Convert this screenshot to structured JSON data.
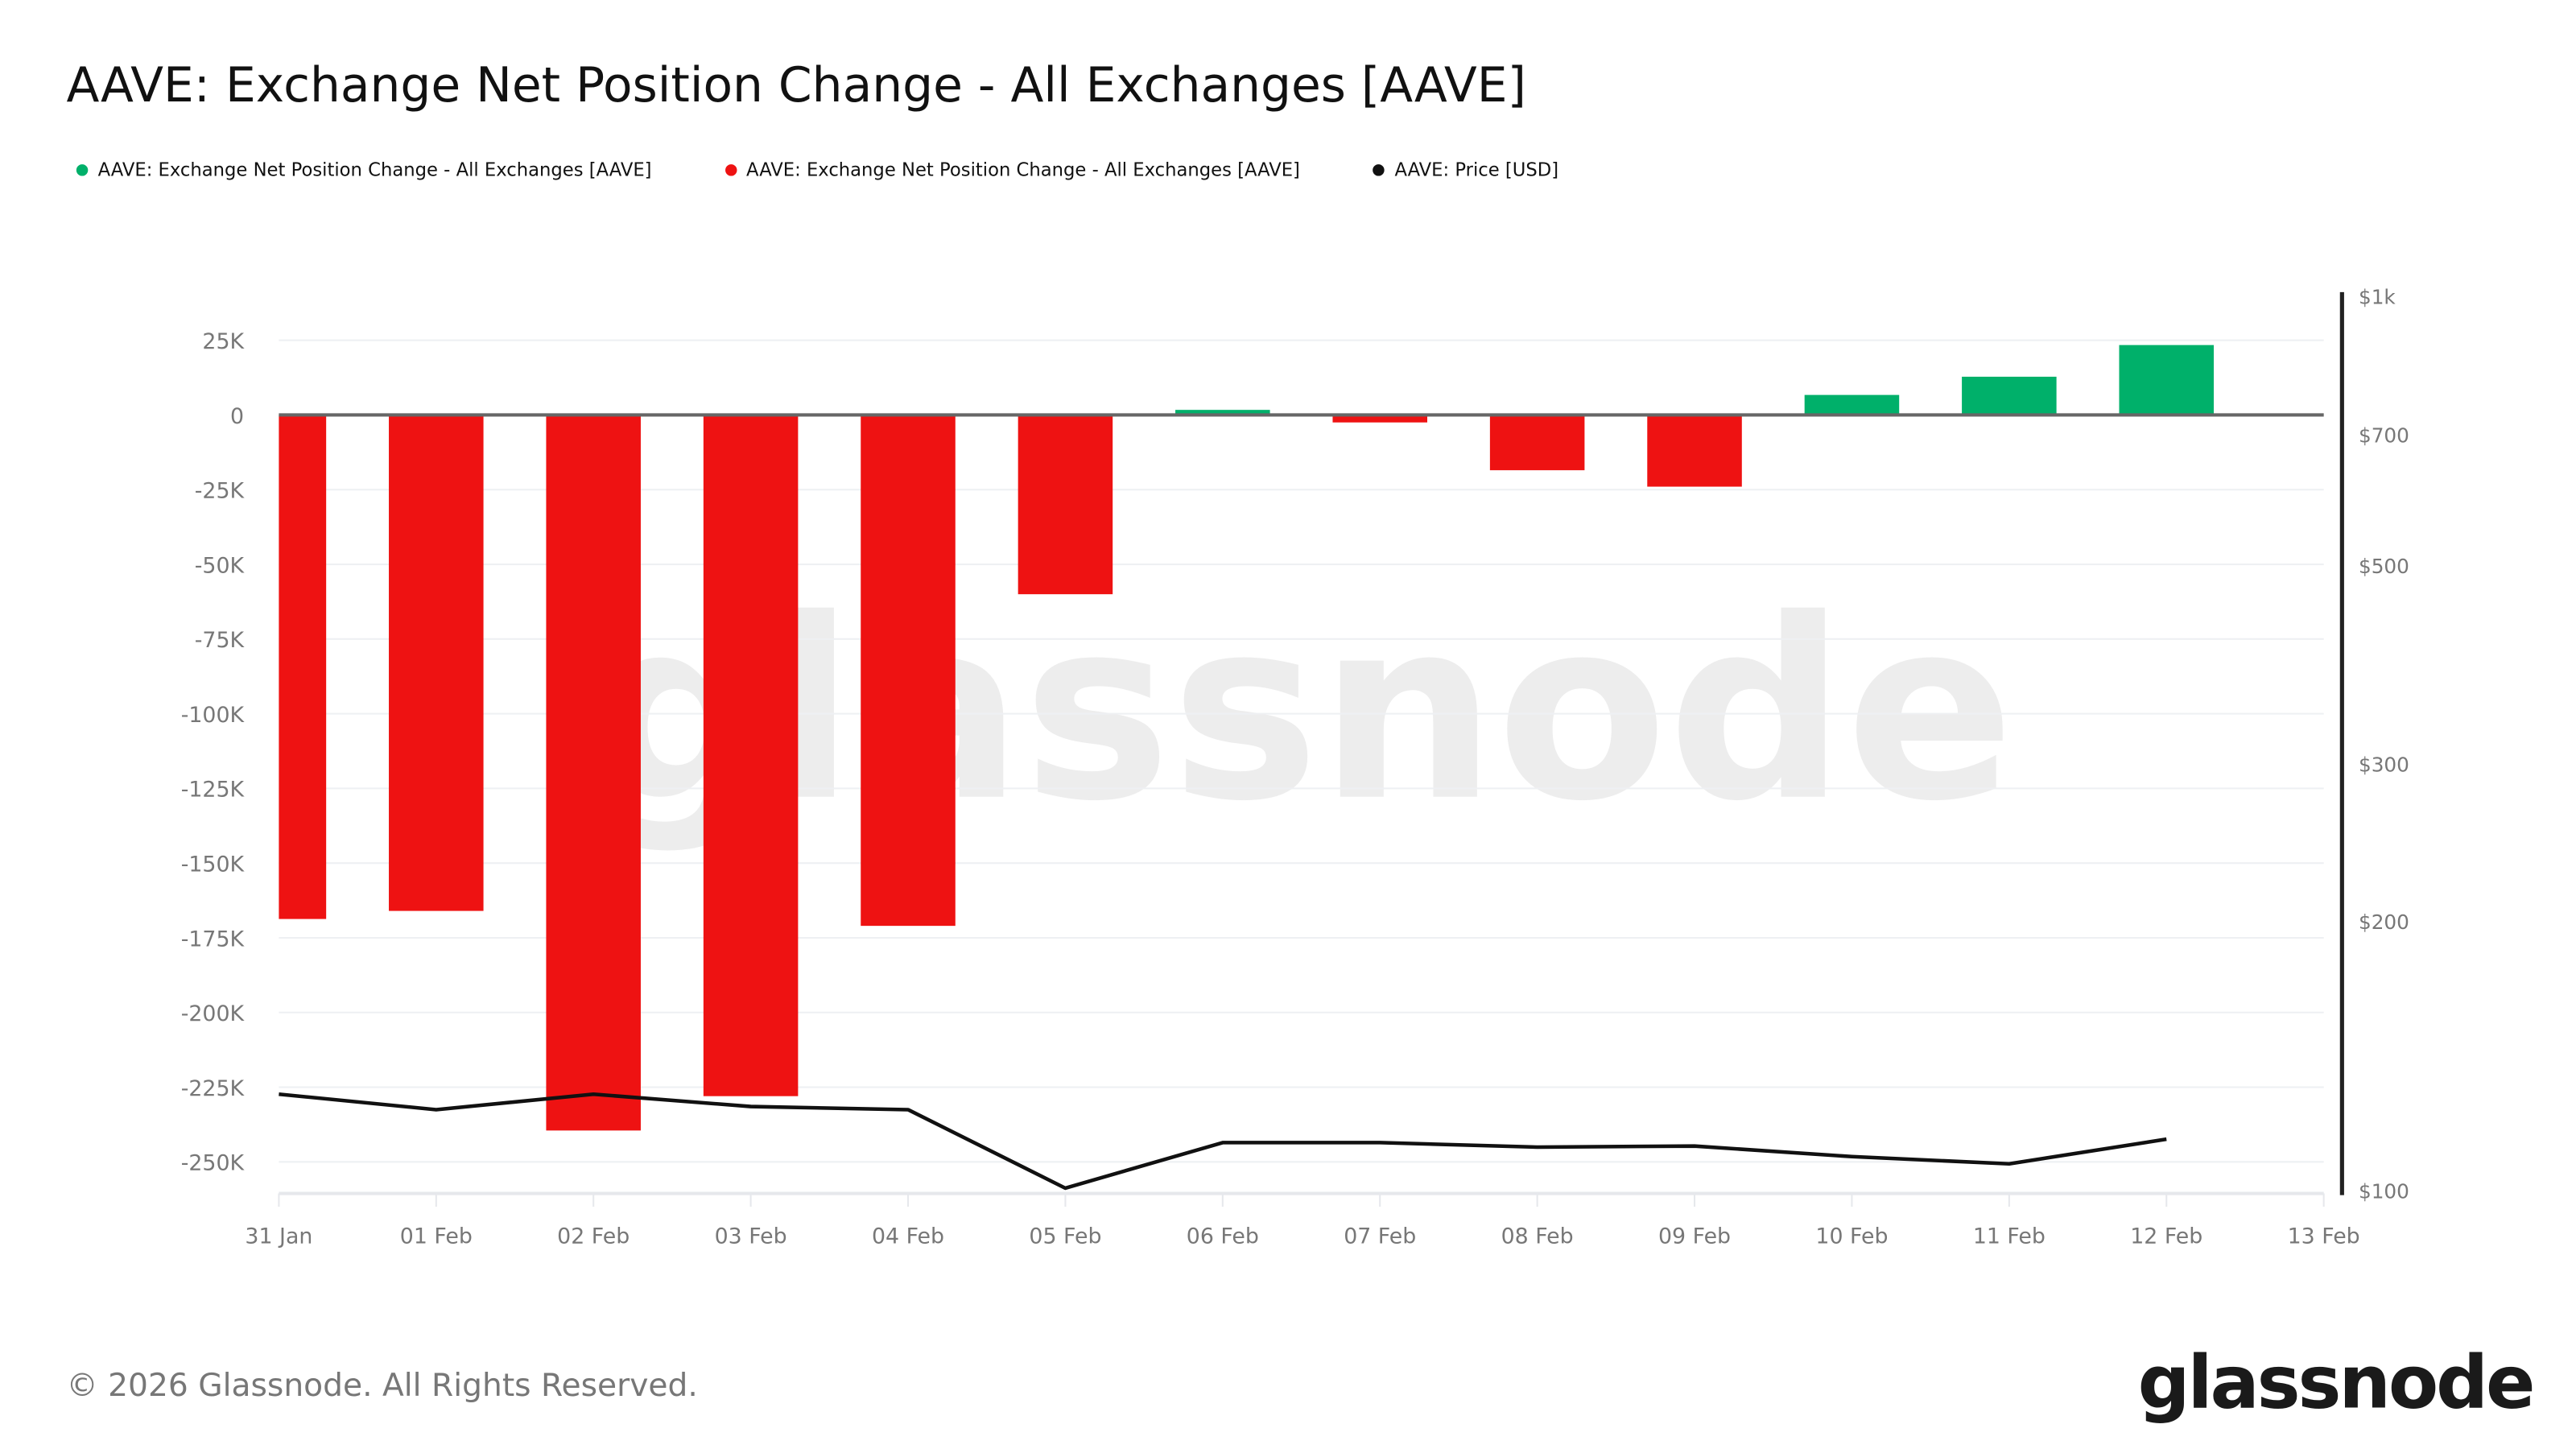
{
  "title": "AAVE: Exchange Net Position Change - All Exchanges [AAVE]",
  "legend": [
    {
      "label": "AAVE: Exchange Net Position Change - All Exchanges [AAVE]",
      "color": "#00b06a"
    },
    {
      "label": "AAVE: Exchange Net Position Change - All Exchanges [AAVE]",
      "color": "#ee1212"
    },
    {
      "label": "AAVE: Price [USD]",
      "color": "#111111"
    }
  ],
  "footer": "© 2026 Glassnode. All Rights Reserved.",
  "logo": "glassnode",
  "watermark": "glassnode",
  "chart_data": {
    "type": "bar",
    "categories": [
      "31 Jan",
      "01 Feb",
      "02 Feb",
      "03 Feb",
      "04 Feb",
      "05 Feb",
      "06 Feb",
      "07 Feb",
      "08 Feb",
      "09 Feb",
      "10 Feb",
      "11 Feb",
      "12 Feb"
    ],
    "x_tick_labels": [
      "31 Jan",
      "01 Feb",
      "02 Feb",
      "03 Feb",
      "04 Feb",
      "05 Feb",
      "06 Feb",
      "07 Feb",
      "08 Feb",
      "09 Feb",
      "10 Feb",
      "11 Feb",
      "12 Feb",
      "13 Feb"
    ],
    "series": [
      {
        "name": "AAVE: Exchange Net Position Change - All Exchanges [AAVE]",
        "type": "bar",
        "axis": "left",
        "positive_color": "#00b06a",
        "negative_color": "#ee1212",
        "values": [
          -168700,
          -166000,
          -239500,
          -228000,
          -171000,
          -60000,
          1700,
          -2500,
          -18500,
          -24000,
          6700,
          12800,
          23400
        ]
      },
      {
        "name": "AAVE: Price [USD]",
        "type": "line",
        "axis": "right",
        "color": "#111111",
        "values": [
          128,
          123,
          128,
          124,
          123,
          100.5,
          113,
          113,
          111.7,
          112,
          109,
          107,
          114
        ]
      }
    ],
    "left_axis": {
      "ticks": [
        25000,
        0,
        -25000,
        -50000,
        -75000,
        -100000,
        -125000,
        -150000,
        -175000,
        -200000,
        -225000,
        -250000
      ],
      "tick_labels": [
        "25K",
        "0",
        "-25K",
        "-50K",
        "-75K",
        "-100K",
        "-125K",
        "-150K",
        "-175K",
        "-200K",
        "-225K",
        "-250K"
      ],
      "ylim": [
        -260000,
        25000
      ]
    },
    "right_axis": {
      "scale": "log",
      "ticks": [
        1000,
        700,
        500,
        300,
        200,
        100
      ],
      "tick_labels": [
        "$1k",
        "$700",
        "$500",
        "$300",
        "$200",
        "$100"
      ],
      "ylim": [
        100,
        1000
      ]
    },
    "grid": true,
    "legend_position": "top-left"
  }
}
